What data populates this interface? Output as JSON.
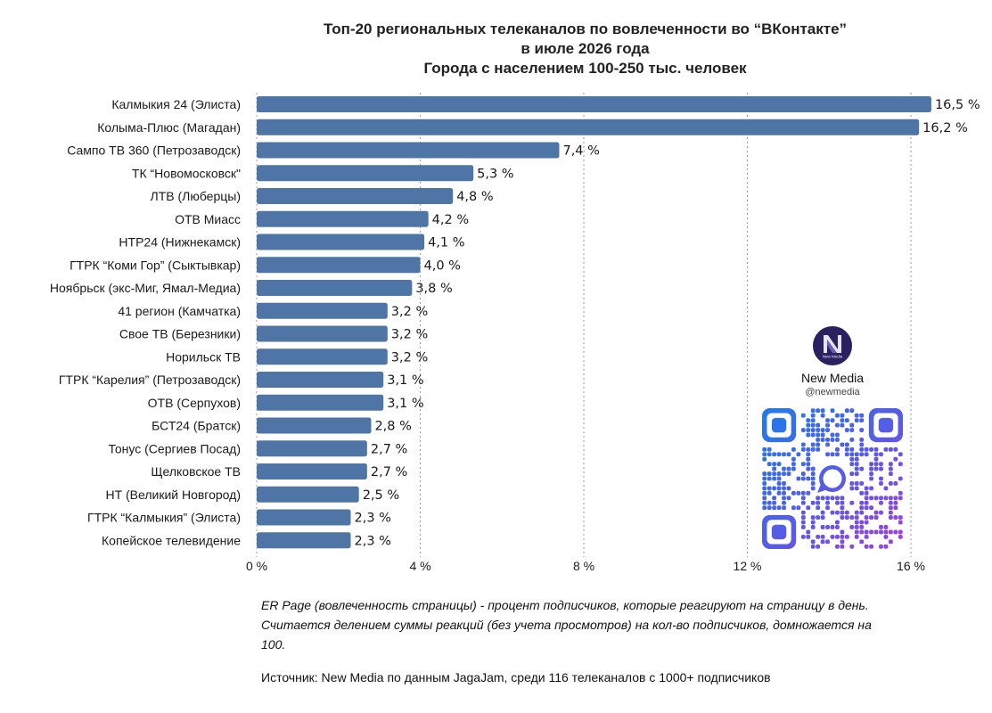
{
  "title_lines": [
    "Топ-20 региональных телеканалов по вовлеченности во “ВКонтакте”",
    "в июле 2026 года",
    "Города с населением 100-250 тыс. человек"
  ],
  "chart_data": {
    "type": "bar",
    "orientation": "horizontal",
    "categories": [
      "Калмыкия 24 (Элиста)",
      "Колыма-Плюс (Магадан)",
      "Сампо ТВ 360 (Петрозаводск)",
      "ТК “Новомосковск\"",
      "ЛТВ (Люберцы)",
      "ОТВ Миасс",
      "НТР24 (Нижнекамск)",
      "ГТРК “Коми Гор” (Сыктывкар)",
      "Ноябрьск (экс-Миг, Ямал-Медиа)",
      "41 регион (Камчатка)",
      "Свое ТВ (Березники)",
      "Норильск ТВ",
      "ГТРК “Карелия” (Петрозаводск)",
      "ОТВ (Серпухов)",
      "БСТ24 (Братск)",
      "Тонус (Сергиев Посад)",
      "Щелковское ТВ",
      "НТ (Великий Новгород)",
      "ГТРК “Калмыкия” (Элиста)",
      "Копейское телевидение"
    ],
    "values": [
      16.5,
      16.2,
      7.4,
      5.3,
      4.8,
      4.2,
      4.1,
      4.0,
      3.8,
      3.2,
      3.2,
      3.2,
      3.1,
      3.1,
      2.8,
      2.7,
      2.7,
      2.5,
      2.3,
      2.3
    ],
    "value_labels": [
      "16,5 %",
      "16,2 %",
      "7,4 %",
      "5,3 %",
      "4,8 %",
      "4,2 %",
      "4,1 %",
      "4,0 %",
      "3,8 %",
      "3,2 %",
      "3,2 %",
      "3,2 %",
      "3,1 %",
      "3,1 %",
      "2,8 %",
      "2,7 %",
      "2,7 %",
      "2,5 %",
      "2,3 %",
      "2,3 %"
    ],
    "x_ticks": [
      0,
      4,
      8,
      12,
      16
    ],
    "x_tick_labels": [
      "0 %",
      "4 %",
      "8 %",
      "12 %",
      "16 %"
    ],
    "xlim": [
      0,
      16
    ],
    "grid": "vertical dashed",
    "legend": "none",
    "bar_color": "#4e75a6"
  },
  "note": {
    "lines": [
      "ER Page (вовлеченность страницы) - процент подписчиков, которые реагируют на страницу в день.",
      "Считается делением суммы реакций (без учета просмотров) на кол-во подписчиков, домножается на",
      "100."
    ]
  },
  "source": "Источник: New Media по данным JagaJam, среди 116 телеканалов с 1000+ подписчиков",
  "brand": {
    "name": "New Media",
    "handle": "@newmedia",
    "logo_text": "New Media",
    "logo_icon": "new-media-logo-icon",
    "qr_icon": "qr-code-icon"
  }
}
